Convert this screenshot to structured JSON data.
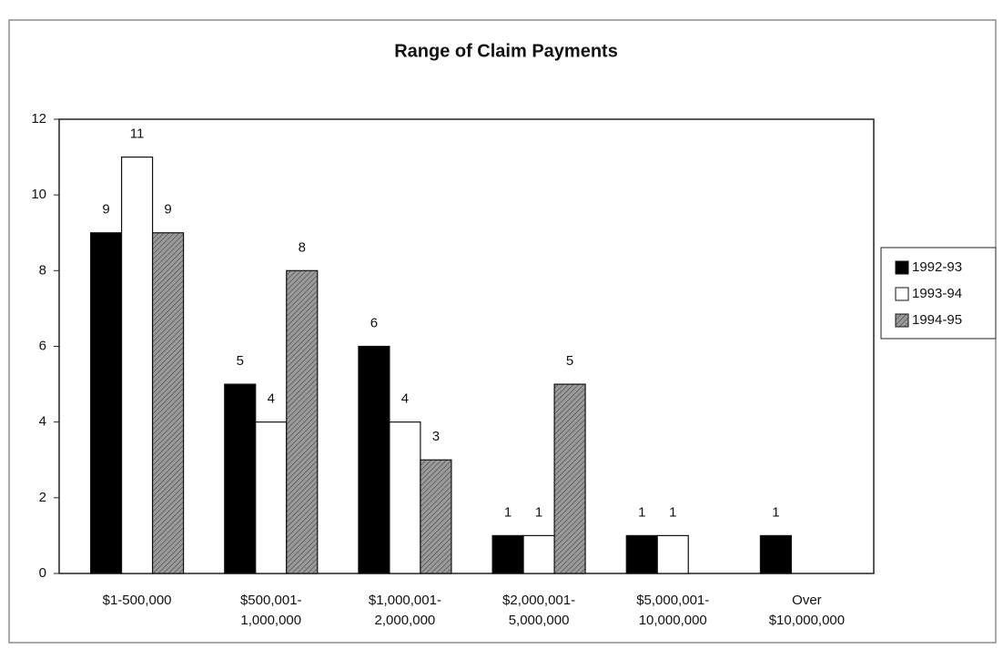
{
  "chart_data": {
    "type": "bar",
    "title": "Range of Claim Payments",
    "categories": [
      "$1-500,000",
      "$500,001-\n1,000,000",
      "$1,000,001-\n2,000,000",
      "$2,000,001-\n5,000,000",
      "$5,000,001-\n10,000,000",
      "Over\n$10,000,000"
    ],
    "series": [
      {
        "name": "1992-93",
        "color": "#000000",
        "values": [
          9,
          5,
          6,
          1,
          1,
          1
        ]
      },
      {
        "name": "1993-94",
        "color": "#ffffff",
        "values": [
          11,
          4,
          4,
          1,
          1,
          null
        ]
      },
      {
        "name": "1994-95",
        "color": "#9a9a9a",
        "hatch": true,
        "values": [
          9,
          8,
          3,
          5,
          null,
          null
        ]
      }
    ],
    "ylim": [
      0,
      12
    ],
    "yticks": [
      0,
      2,
      4,
      6,
      8,
      10,
      12
    ],
    "grid": false,
    "legend": "right"
  }
}
